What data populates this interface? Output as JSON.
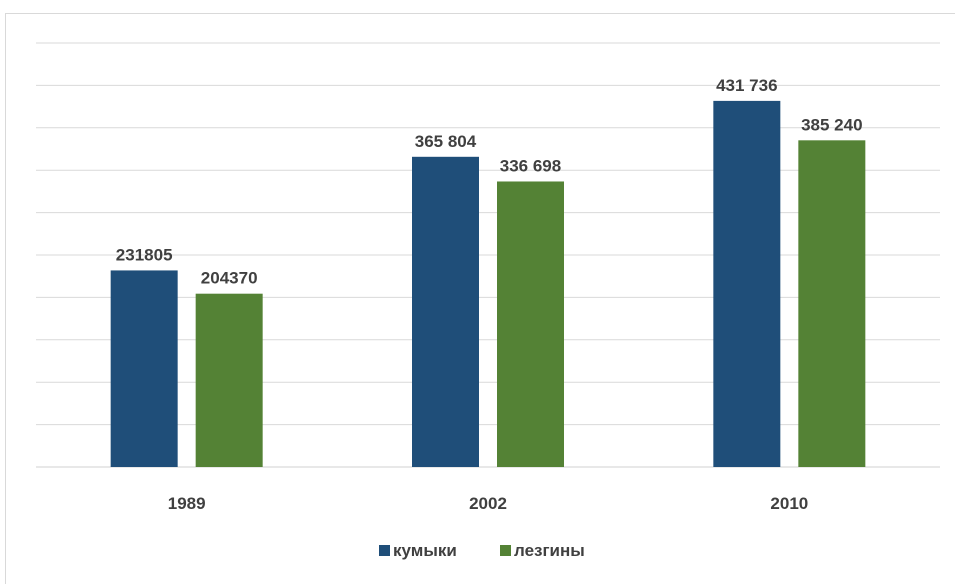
{
  "chart_data": {
    "type": "bar",
    "categories": [
      "1989",
      "2002",
      "2010"
    ],
    "series": [
      {
        "name": "кумыки",
        "values": [
          231805,
          365804,
          431736
        ],
        "labels": [
          "231805",
          "365 804",
          "431 736"
        ],
        "color": "#1f4e79"
      },
      {
        "name": "лезгины",
        "values": [
          204370,
          336698,
          385240
        ],
        "labels": [
          "204370",
          "336 698",
          "385 240"
        ],
        "color": "#548235"
      }
    ],
    "ylim": [
      0,
      500000
    ],
    "grid": true,
    "legend": "bottom",
    "title": "",
    "xlabel": "",
    "ylabel": ""
  }
}
